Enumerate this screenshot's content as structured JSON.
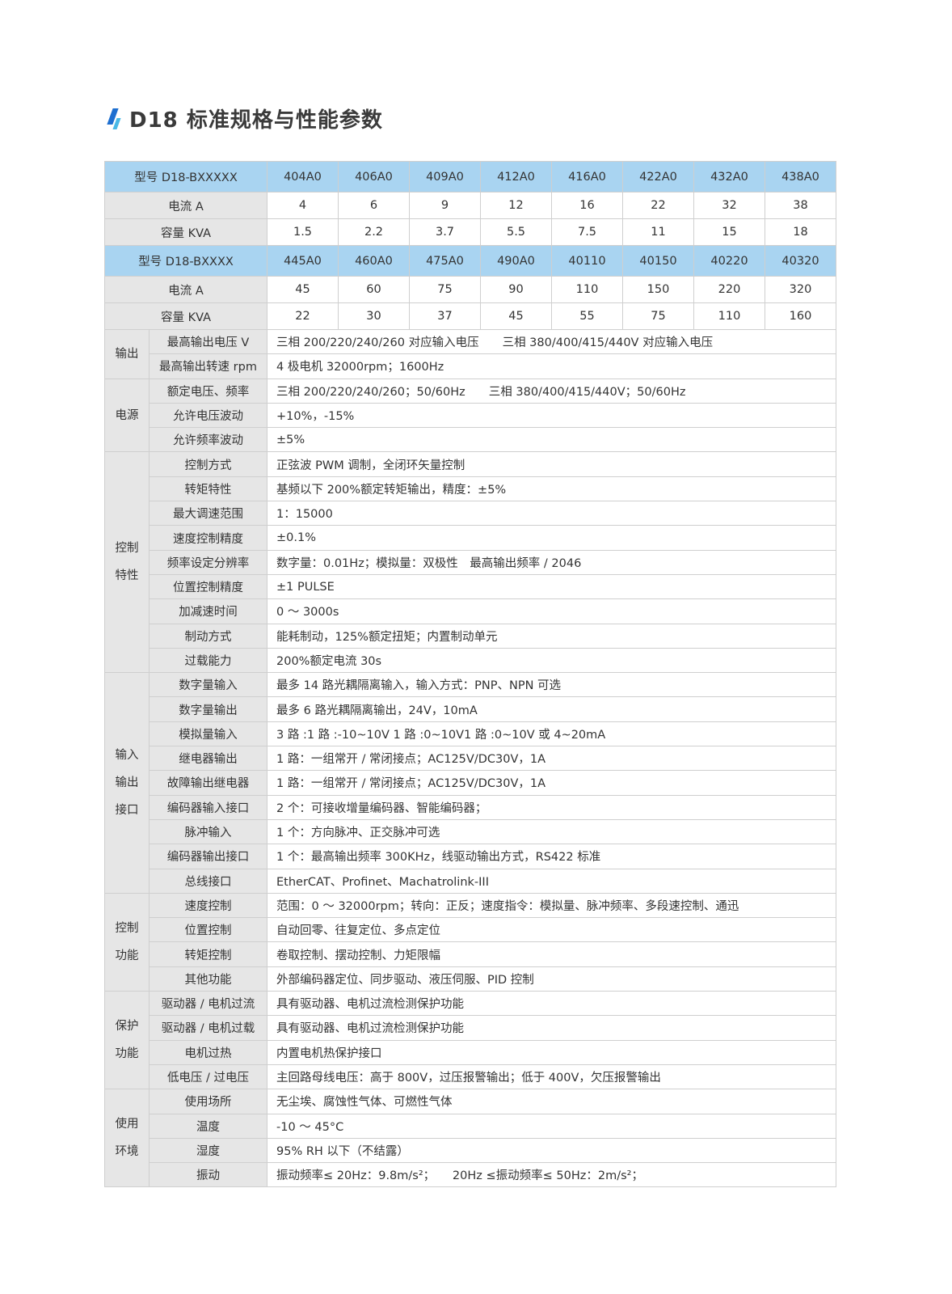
{
  "title": "D18 标准规格与性能参数",
  "model_blocks": [
    {
      "header": "型号 D18-BXXXXX",
      "models": [
        "404A0",
        "406A0",
        "409A0",
        "412A0",
        "416A0",
        "422A0",
        "432A0",
        "438A0"
      ],
      "rows": [
        {
          "label": "电流 A",
          "values": [
            "4",
            "6",
            "9",
            "12",
            "16",
            "22",
            "32",
            "38"
          ]
        },
        {
          "label": "容量 KVA",
          "values": [
            "1.5",
            "2.2",
            "3.7",
            "5.5",
            "7.5",
            "11",
            "15",
            "18"
          ]
        }
      ]
    },
    {
      "header": "型号 D18-BXXXX",
      "models": [
        "445A0",
        "460A0",
        "475A0",
        "490A0",
        "40110",
        "40150",
        "40220",
        "40320"
      ],
      "rows": [
        {
          "label": "电流 A",
          "values": [
            "45",
            "60",
            "75",
            "90",
            "110",
            "150",
            "220",
            "320"
          ]
        },
        {
          "label": "容量 KVA",
          "values": [
            "22",
            "30",
            "37",
            "45",
            "55",
            "75",
            "110",
            "160"
          ]
        }
      ]
    }
  ],
  "spec_groups": [
    {
      "lines": [
        "输出"
      ],
      "rows": [
        {
          "label": "最高输出电压 V",
          "value": "三相 200/220/240/260 对应输入电压　　三相 380/400/415/440V 对应输入电压"
        },
        {
          "label": "最高输出转速 rpm",
          "value": "4 极电机 32000rpm；1600Hz"
        }
      ]
    },
    {
      "lines": [
        "电源"
      ],
      "rows": [
        {
          "label": "额定电压、频率",
          "value": "三相 200/220/240/260；50/60Hz　　三相 380/400/415/440V；50/60Hz"
        },
        {
          "label": "允许电压波动",
          "value": "+10%，-15%"
        },
        {
          "label": "允许频率波动",
          "value": "±5%"
        }
      ]
    },
    {
      "lines": [
        "控制",
        "特性"
      ],
      "rows": [
        {
          "label": "控制方式",
          "value": "正弦波 PWM 调制，全闭环矢量控制"
        },
        {
          "label": "转矩特性",
          "value": "基频以下 200%额定转矩输出，精度：±5%"
        },
        {
          "label": "最大调速范围",
          "value": "1：15000"
        },
        {
          "label": "速度控制精度",
          "value": "±0.1%"
        },
        {
          "label": "频率设定分辨率",
          "value": "数字量：0.01Hz；模拟量：双极性　最高输出频率 / 2046"
        },
        {
          "label": "位置控制精度",
          "value": "±1 PULSE"
        },
        {
          "label": "加减速时间",
          "value": "0 ～ 3000s"
        },
        {
          "label": "制动方式",
          "value": "能耗制动，125%额定扭矩；内置制动单元"
        },
        {
          "label": "过载能力",
          "value": "200%额定电流 30s"
        }
      ]
    },
    {
      "lines": [
        "输入",
        "输出",
        "接口"
      ],
      "rows": [
        {
          "label": "数字量输入",
          "value": "最多 14 路光耦隔离输入，输入方式：PNP、NPN 可选"
        },
        {
          "label": "数字量输出",
          "value": "最多 6 路光耦隔离输出，24V，10mA"
        },
        {
          "label": "模拟量输入",
          "value": "3 路 :1 路 :-10~10V 1 路 :0~10V1 路 :0~10V 或 4~20mA"
        },
        {
          "label": "继电器输出",
          "value": "1 路：一组常开 / 常闭接点；AC125V/DC30V，1A"
        },
        {
          "label": "故障输出继电器",
          "value": "1 路：一组常开 / 常闭接点；AC125V/DC30V，1A"
        },
        {
          "label": "编码器输入接口",
          "value": "2 个：可接收增量编码器、智能编码器；"
        },
        {
          "label": "脉冲输入",
          "value": "1 个：方向脉冲、正交脉冲可选"
        },
        {
          "label": "编码器输出接口",
          "value": "1 个：最高输出频率 300KHz，线驱动输出方式，RS422 标准"
        },
        {
          "label": "总线接口",
          "value": "EtherCAT、Profinet、Machatrolink-III"
        }
      ]
    },
    {
      "lines": [
        "控制",
        "功能"
      ],
      "rows": [
        {
          "label": "速度控制",
          "value": "范围：0 ～ 32000rpm；转向：正反；速度指令：模拟量、脉冲频率、多段速控制、通迅"
        },
        {
          "label": "位置控制",
          "value": "自动回零、往复定位、多点定位"
        },
        {
          "label": "转矩控制",
          "value": "卷取控制、摆动控制、力矩限幅"
        },
        {
          "label": "其他功能",
          "value": "外部编码器定位、同步驱动、液压伺服、PID 控制"
        }
      ]
    },
    {
      "lines": [
        "保护",
        "功能"
      ],
      "rows": [
        {
          "label": "驱动器 / 电机过流",
          "value": "具有驱动器、电机过流检测保护功能"
        },
        {
          "label": "驱动器 / 电机过载",
          "value": "具有驱动器、电机过流检测保护功能"
        },
        {
          "label": "电机过热",
          "value": "内置电机热保护接口"
        },
        {
          "label": "低电压 / 过电压",
          "value": "主回路母线电压：高于 800V，过压报警输出；低于 400V，欠压报警输出"
        }
      ]
    },
    {
      "lines": [
        "使用",
        "环境"
      ],
      "rows": [
        {
          "label": "使用场所",
          "value": "无尘埃、腐蚀性气体、可燃性气体"
        },
        {
          "label": "温度",
          "value": "-10 ～ 45°C"
        },
        {
          "label": "湿度",
          "value": "95% RH 以下（不结露）"
        },
        {
          "label": "振动",
          "value": "振动频率≤ 20Hz：9.8m/s²；　　20Hz ≤振动频率≤ 50Hz：2m/s²；"
        }
      ]
    }
  ],
  "colors": {
    "header_bg": "#a9d4f1",
    "label_bg": "#e6e6e6",
    "icon_dark": "#1e6fd0",
    "icon_light": "#49b8e6"
  }
}
